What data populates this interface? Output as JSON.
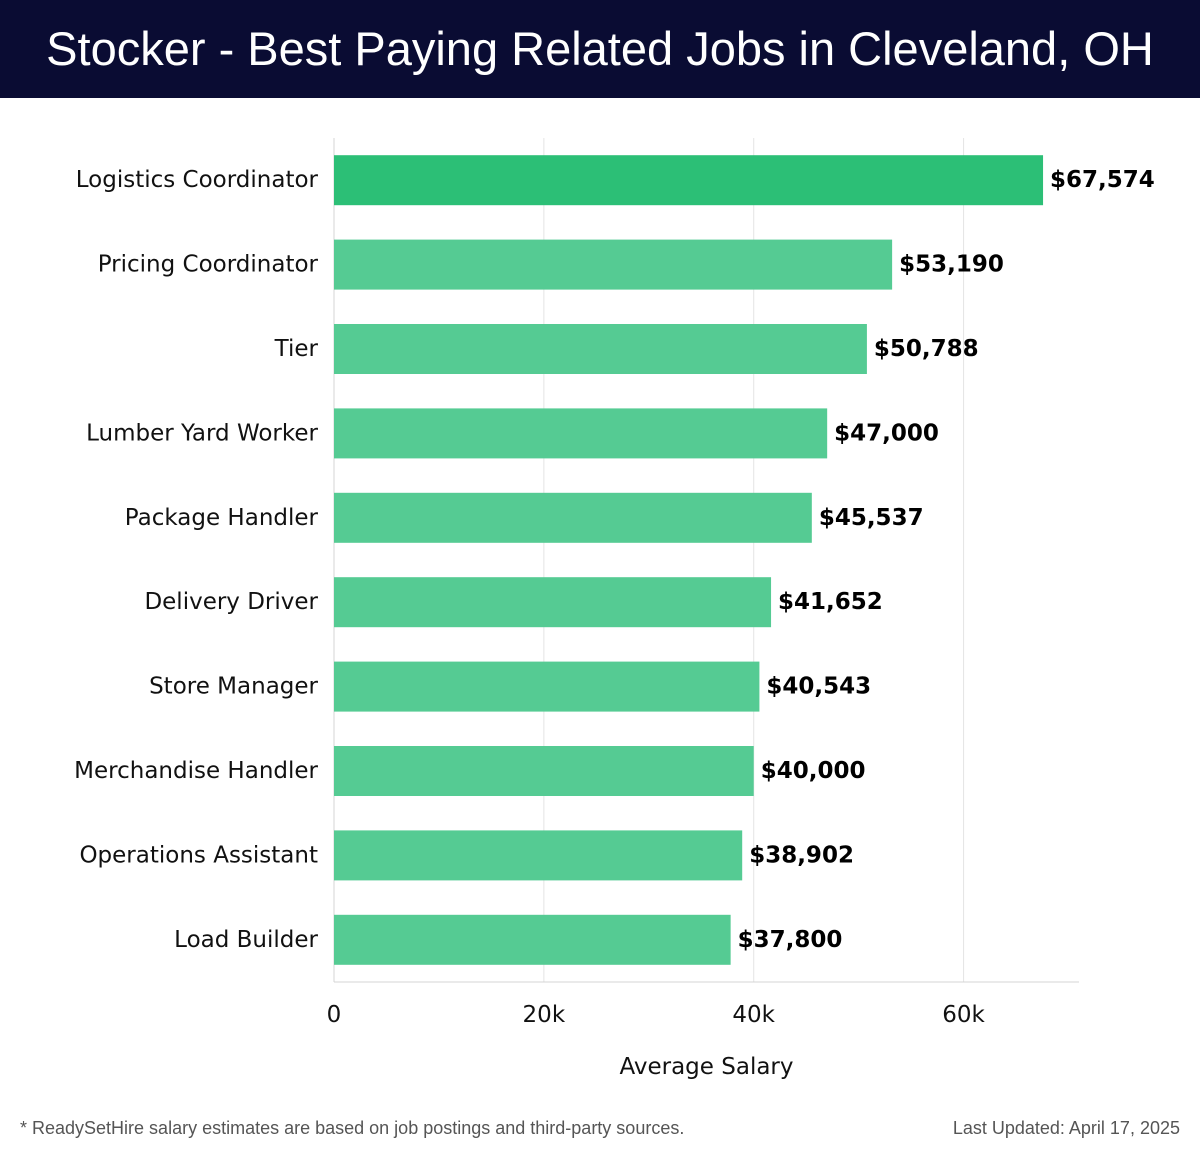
{
  "header": {
    "title": "Stocker - Best Paying Related Jobs in Cleveland, OH"
  },
  "colors": {
    "header_bg": "#0a0c33",
    "bar_top": "#2cbf76",
    "bar": "#55cb93"
  },
  "chart_data": {
    "type": "bar",
    "orientation": "horizontal",
    "title": "Stocker - Best Paying Related Jobs in Cleveland, OH",
    "xlabel": "Average Salary",
    "ylabel": "",
    "xlim": [
      0,
      71000
    ],
    "xticks": [
      0,
      20000,
      40000,
      60000
    ],
    "xtick_labels": [
      "0",
      "20k",
      "40k",
      "60k"
    ],
    "grid": "vertical",
    "categories": [
      "Logistics Coordinator",
      "Pricing Coordinator",
      "Tier",
      "Lumber Yard Worker",
      "Package Handler",
      "Delivery Driver",
      "Store Manager",
      "Merchandise Handler",
      "Operations Assistant",
      "Load Builder"
    ],
    "values": [
      67574,
      53190,
      50788,
      47000,
      45537,
      41652,
      40543,
      40000,
      38902,
      37800
    ],
    "value_labels": [
      "$67,574",
      "$53,190",
      "$50,788",
      "$47,000",
      "$45,537",
      "$41,652",
      "$40,543",
      "$40,000",
      "$38,902",
      "$37,800"
    ]
  },
  "footer": {
    "note": "* ReadySetHire salary estimates are based on job postings and third-party sources.",
    "updated": "Last Updated: April 17, 2025"
  }
}
